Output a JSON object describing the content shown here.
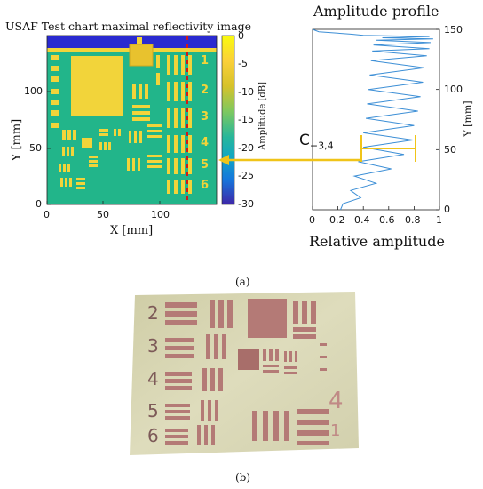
{
  "panel_a": {
    "heatmap": {
      "title": "USAF Test chart maximal reflectivity image",
      "xlabel": "X [mm]",
      "ylabel": "Y [mm]",
      "x_ticks": [
        "0",
        "50",
        "100"
      ],
      "y_ticks": [
        "0",
        "50",
        "100"
      ],
      "colorbar_label": "Amplitude [dB]",
      "colorbar_ticks": [
        "0",
        "-5",
        "-10",
        "-15",
        "-20",
        "-25",
        "-30"
      ],
      "group_numbers": [
        "1",
        "2",
        "3",
        "4",
        "5",
        "6"
      ],
      "colors": {
        "background": "#22b58a",
        "bars": "#f2d43a",
        "top_strip": "#2a2ad0",
        "cut_line": "#d01818"
      }
    },
    "profile": {
      "title": "Amplitude profile",
      "xlabel": "Relative amplitude",
      "ylabel": "Y [mm]",
      "x_ticks": [
        "0",
        "0.2",
        "0.4",
        "0.6",
        "0.8",
        "1"
      ],
      "y_ticks": [
        "0",
        "50",
        "100",
        "150"
      ],
      "annotation": "C",
      "annotation_sub": "−3,4",
      "colors": {
        "line": "#3d8fd6",
        "marker": "#f0c419",
        "arrow": "#f0c419"
      }
    },
    "caption": "(a)"
  },
  "panel_b": {
    "group_numbers": [
      "2",
      "3",
      "4",
      "5",
      "6"
    ],
    "right_numbers": [
      "4",
      "1"
    ],
    "colors": {
      "board": "#d8d6b4",
      "bars": "#b47a76"
    },
    "caption": "(b)"
  },
  "chart_data": {
    "type": "line",
    "title": "Amplitude profile",
    "xlabel": "Relative amplitude",
    "ylabel": "Y [mm]",
    "xlim": [
      0,
      1
    ],
    "ylim": [
      0,
      150
    ],
    "series": [
      {
        "x": [
          0.22,
          0.24,
          0.38,
          0.3,
          0.5,
          0.33,
          0.62,
          0.36,
          0.72,
          0.4,
          0.79,
          0.4,
          0.8,
          0.42,
          0.83,
          0.43,
          0.85,
          0.44,
          0.87,
          0.45,
          0.88,
          0.46,
          0.9,
          0.47,
          0.92,
          0.48,
          0.93,
          0.5,
          0.95,
          0.55,
          0.92,
          0.4,
          0.3,
          0.05,
          0
        ],
        "y": [
          0,
          5,
          10,
          16,
          22,
          28,
          34,
          40,
          46,
          52,
          58,
          64,
          70,
          76,
          82,
          88,
          94,
          100,
          106,
          112,
          118,
          124,
          128,
          132,
          134,
          137,
          139,
          141,
          142,
          143,
          144,
          145,
          146,
          148,
          150
        ]
      }
    ]
  }
}
